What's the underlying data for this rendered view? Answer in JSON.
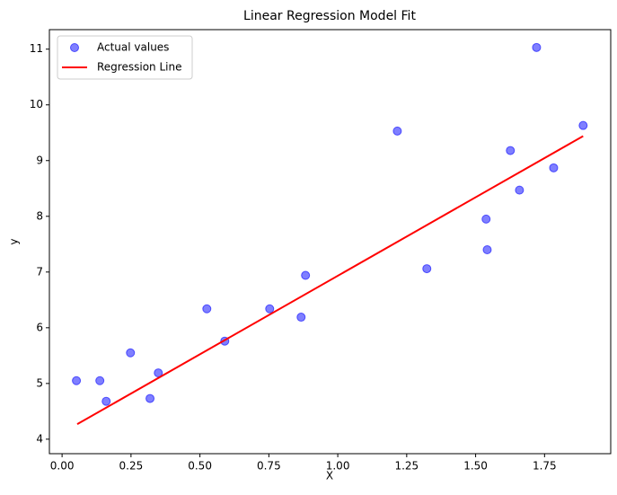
{
  "chart_data": {
    "type": "scatter",
    "title": "Linear Regression Model Fit",
    "x_label": "X",
    "y_label": "y",
    "xlim": [
      -0.046,
      1.99
    ],
    "ylim": [
      3.74,
      11.35
    ],
    "xticks": [
      {
        "value": 0,
        "label": "0.00"
      },
      {
        "value": 0.25,
        "label": "0.25"
      },
      {
        "value": 0.5,
        "label": "0.50"
      },
      {
        "value": 0.75,
        "label": "0.75"
      },
      {
        "value": 1,
        "label": "1.00"
      },
      {
        "value": 1.25,
        "label": "1.25"
      },
      {
        "value": 1.5,
        "label": "1.50"
      },
      {
        "value": 1.75,
        "label": "1.75"
      }
    ],
    "yticks": [
      4,
      5,
      6,
      7,
      8,
      9,
      10,
      11
    ],
    "legend": "upper-left",
    "series": [
      {
        "name": "Actual values",
        "type": "scatter",
        "color": "#0000ff",
        "x": [
          0.052,
          0.137,
          0.16,
          0.248,
          0.319,
          0.349,
          0.525,
          0.59,
          0.753,
          0.867,
          0.883,
          1.216,
          1.323,
          1.538,
          1.542,
          1.626,
          1.659,
          1.721,
          1.783,
          1.89
        ],
        "values": [
          5.05,
          5.05,
          4.68,
          5.55,
          4.73,
          5.19,
          6.34,
          5.76,
          6.34,
          6.19,
          6.94,
          9.53,
          7.06,
          7.95,
          7.4,
          9.18,
          8.47,
          11.03,
          8.87,
          9.63
        ]
      },
      {
        "name": "Regression Line",
        "type": "line",
        "color": "#ff0000",
        "x": [
          0.055,
          1.89
        ],
        "values": [
          4.27,
          9.44
        ]
      }
    ]
  }
}
